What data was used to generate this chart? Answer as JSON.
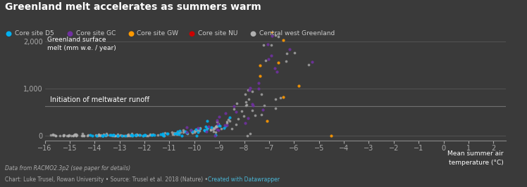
{
  "title": "Greenland melt accelerates as summers warm",
  "background_color": "#3a3a3a",
  "plot_bg_color": "#3a3a3a",
  "text_color": "#ffffff",
  "ylabel": "Greenland surface\nmelt (mm w.e. / year)",
  "xlabel": "Mean summer air\ntemperature (°C)",
  "annotation": "Initiation of meltwater runoff",
  "xmin": -16,
  "xmax": 2.5,
  "ymin": -100,
  "ymax": 2200,
  "hline_y": 620,
  "footnote1": "Data from RACMO2.3p2 (see paper for details)",
  "footnote2": "Chart: Luke Trusel, Rowan University • Source: Trusel et al. 2018 (Nature) • ",
  "footnote2_link": "Created with Datawrapper",
  "yticks": [
    0,
    1000,
    2000
  ],
  "xticks": [
    -16,
    -15,
    -14,
    -13,
    -12,
    -11,
    -10,
    -9,
    -8,
    -7,
    -6,
    -5,
    -4,
    -3,
    -2,
    -1,
    0,
    1,
    2
  ],
  "legend": [
    {
      "label": "Core site D5",
      "color": "#00b0f0"
    },
    {
      "label": "Core site GC",
      "color": "#7030a0"
    },
    {
      "label": "Core site GW",
      "color": "#ff9900"
    },
    {
      "label": "Core site NU",
      "color": "#cc0000"
    },
    {
      "label": "Central west Greenland",
      "color": "#b0b0b0"
    }
  ],
  "curve_color": "#222222"
}
